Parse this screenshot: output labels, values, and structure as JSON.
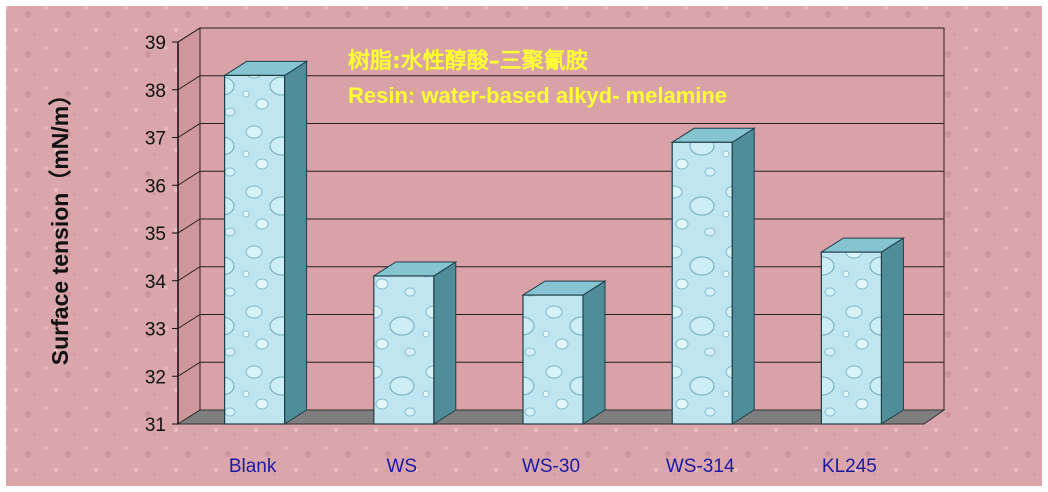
{
  "colors": {
    "background": "#dba6ab",
    "frame": "#ffffff",
    "wall_back": "#d8a2a7",
    "floor": "#7e7e7e",
    "bar_front": "#b8e2ee",
    "bar_side": "#4f8d9b",
    "bar_top": "#86c4d2",
    "annotation": "#ffff33",
    "category_label": "#1a1aa6",
    "axis_text": "#111111"
  },
  "chart_data": {
    "type": "bar",
    "categories": [
      "Blank",
      "WS",
      "WS-30",
      "WS-314",
      "KL245"
    ],
    "values": [
      38.3,
      34.1,
      33.7,
      36.9,
      34.6
    ],
    "ylabel": "Surface tension（mN/m）",
    "ylim": [
      31,
      39
    ],
    "yticks": [
      "31",
      "32",
      "33",
      "34",
      "35",
      "36",
      "37",
      "38",
      "39"
    ],
    "grid": true,
    "annotations": [
      "树脂:水性醇酸–三聚氰胺",
      "Resin: water-based alkyd- melamine"
    ]
  }
}
